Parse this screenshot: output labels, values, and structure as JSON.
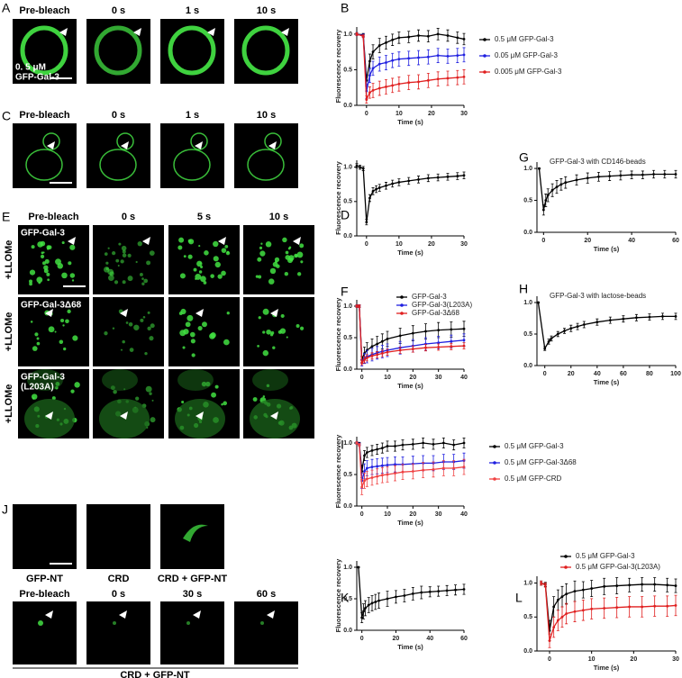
{
  "figure_panels": {
    "A": {
      "label": "A",
      "columns": [
        "Pre-bleach",
        "0 s",
        "1 s",
        "10 s"
      ],
      "overlay": [
        "0. 5 μM",
        "GFP-Gal-3"
      ]
    },
    "C": {
      "label": "C",
      "columns": [
        "Pre-bleach",
        "0 s",
        "1 s",
        "10 s"
      ]
    },
    "E": {
      "label": "E",
      "columns": [
        "Pre-bleach",
        "0 s",
        "5 s",
        "10 s"
      ],
      "rows": [
        {
          "side": "+LLOMe",
          "inset": [
            "GFP-Gal-3"
          ]
        },
        {
          "side": "+LLOMe",
          "inset": [
            "GFP-Gal-3Δ68"
          ]
        },
        {
          "side": "+LLOMe",
          "inset": [
            "GFP-Gal-3",
            "(L203A)"
          ]
        }
      ]
    },
    "J": {
      "label": "J",
      "top_captions": [
        "GFP-NT",
        "CRD",
        "CRD + GFP-NT"
      ],
      "columns": [
        "Pre-bleach",
        "0 s",
        "30 s",
        "60 s"
      ],
      "caption": "CRD + GFP-NT"
    }
  },
  "chart_data": [
    {
      "type": "line",
      "panel": "B",
      "ylabel": "Fluorescence recovery",
      "xlabel": "Time (s)",
      "legend": "right",
      "xlim": [
        -3,
        30
      ],
      "ylim": [
        0,
        1.1
      ],
      "xticks": [
        0,
        10,
        20,
        30
      ],
      "yticks": [
        {
          "value": 0,
          "label": "0.0"
        },
        {
          "value": 0.5,
          "label": "0.5"
        },
        {
          "value": 1,
          "label": "1.0"
        }
      ],
      "x": [
        -3,
        -1,
        0,
        1,
        2,
        4,
        6,
        8,
        10,
        13,
        16,
        19,
        22,
        25,
        28,
        30
      ],
      "series": [
        {
          "name": "0.5 μM GFP-Gal-3",
          "color": "#000000",
          "values": [
            1,
            0.99,
            0.35,
            0.62,
            0.75,
            0.84,
            0.88,
            0.92,
            0.95,
            0.96,
            0.98,
            0.97,
            1.0,
            0.98,
            0.95,
            0.93
          ],
          "errors": [
            0.02,
            0.02,
            0.08,
            0.1,
            0.1,
            0.1,
            0.09,
            0.08,
            0.08,
            0.08,
            0.08,
            0.08,
            0.08,
            0.08,
            0.08,
            0.08
          ]
        },
        {
          "name": "0.05 μM GFP-Gal-3",
          "color": "#1f1fe0",
          "values": [
            1,
            0.98,
            0.2,
            0.42,
            0.52,
            0.58,
            0.6,
            0.63,
            0.65,
            0.66,
            0.67,
            0.68,
            0.7,
            0.69,
            0.7,
            0.71
          ],
          "errors": [
            0.02,
            0.02,
            0.1,
            0.1,
            0.1,
            0.1,
            0.1,
            0.1,
            0.1,
            0.1,
            0.1,
            0.1,
            0.1,
            0.1,
            0.1,
            0.1
          ]
        },
        {
          "name": "0.005 μM GFP-Gal-3",
          "color": "#e01f1f",
          "values": [
            1,
            0.97,
            0.08,
            0.18,
            0.21,
            0.24,
            0.26,
            0.28,
            0.3,
            0.32,
            0.33,
            0.35,
            0.37,
            0.38,
            0.39,
            0.4
          ],
          "errors": [
            0.02,
            0.02,
            0.05,
            0.08,
            0.1,
            0.1,
            0.1,
            0.1,
            0.1,
            0.1,
            0.1,
            0.1,
            0.1,
            0.1,
            0.1,
            0.1
          ]
        }
      ]
    },
    {
      "type": "line",
      "panel": "D",
      "ylabel": "Fluorescence recovery",
      "xlabel": "Time (s)",
      "xlim": [
        -3,
        30
      ],
      "ylim": [
        0,
        1.1
      ],
      "xticks": [
        0,
        10,
        20,
        30
      ],
      "yticks": [
        {
          "value": 0,
          "label": "0.0"
        },
        {
          "value": 0.5,
          "label": "0.5"
        },
        {
          "value": 1,
          "label": "1.0"
        }
      ],
      "x": [
        -3,
        -2,
        -1,
        0,
        1,
        2,
        3,
        4,
        6,
        8,
        10,
        13,
        16,
        19,
        22,
        25,
        28,
        30
      ],
      "series": [
        {
          "color": "#000000",
          "values": [
            1.02,
            1.0,
            0.98,
            0.2,
            0.55,
            0.65,
            0.68,
            0.7,
            0.73,
            0.76,
            0.78,
            0.8,
            0.82,
            0.84,
            0.85,
            0.86,
            0.87,
            0.88
          ],
          "errors": [
            0.03,
            0.03,
            0.03,
            0.04,
            0.05,
            0.05,
            0.05,
            0.05,
            0.05,
            0.05,
            0.05,
            0.05,
            0.05,
            0.05,
            0.05,
            0.05,
            0.05,
            0.05
          ]
        }
      ]
    },
    {
      "type": "line",
      "panel": "G",
      "title": "GFP-Gal-3 with CD146-beads",
      "xlabel": "Time (s)",
      "xlim": [
        -3,
        60
      ],
      "ylim": [
        0,
        1.1
      ],
      "xticks": [
        0,
        20,
        40,
        60
      ],
      "yticks": [
        {
          "value": 0,
          "label": "0.0"
        },
        {
          "value": 0.5,
          "label": "0.5"
        },
        {
          "value": 1,
          "label": "1.0"
        }
      ],
      "x": [
        -2,
        0,
        1,
        2,
        4,
        6,
        8,
        10,
        15,
        20,
        25,
        30,
        35,
        40,
        45,
        50,
        55,
        60
      ],
      "series": [
        {
          "color": "#000000",
          "values": [
            1,
            0.35,
            0.5,
            0.58,
            0.66,
            0.71,
            0.75,
            0.78,
            0.82,
            0.85,
            0.87,
            0.88,
            0.89,
            0.9,
            0.9,
            0.91,
            0.91,
            0.91
          ],
          "errors": [
            0.01,
            0.08,
            0.1,
            0.1,
            0.1,
            0.1,
            0.09,
            0.09,
            0.08,
            0.08,
            0.07,
            0.07,
            0.07,
            0.06,
            0.06,
            0.06,
            0.06,
            0.06
          ]
        }
      ]
    },
    {
      "type": "line",
      "panel": "F",
      "ylabel": "Fluorescence recovery",
      "xlabel": "Time (s)",
      "legend": "inside",
      "xlim": [
        -2,
        40
      ],
      "ylim": [
        0,
        1.1
      ],
      "xticks": [
        0,
        10,
        20,
        30,
        40
      ],
      "yticks": [
        {
          "value": 0,
          "label": "0.0"
        },
        {
          "value": 0.5,
          "label": "0.5"
        },
        {
          "value": 1,
          "label": "1.0"
        }
      ],
      "x": [
        -2,
        -1,
        0,
        1,
        2,
        4,
        6,
        8,
        10,
        15,
        20,
        25,
        30,
        35,
        40
      ],
      "series": [
        {
          "name": "GFP-Gal-3",
          "color": "#000000",
          "values": [
            1,
            1,
            0.15,
            0.25,
            0.3,
            0.36,
            0.4,
            0.44,
            0.48,
            0.53,
            0.57,
            0.6,
            0.62,
            0.63,
            0.64
          ],
          "errors": [
            0.02,
            0.02,
            0.05,
            0.1,
            0.12,
            0.12,
            0.12,
            0.12,
            0.12,
            0.12,
            0.12,
            0.12,
            0.12,
            0.12,
            0.12
          ]
        },
        {
          "name": "GFP-Gal-3(L203A)",
          "color": "#1f1fe0",
          "values": [
            1,
            1,
            0.1,
            0.17,
            0.2,
            0.23,
            0.26,
            0.28,
            0.3,
            0.34,
            0.37,
            0.4,
            0.42,
            0.44,
            0.46
          ],
          "errors": [
            0.02,
            0.02,
            0.05,
            0.08,
            0.1,
            0.1,
            0.1,
            0.1,
            0.1,
            0.1,
            0.1,
            0.1,
            0.1,
            0.1,
            0.1
          ]
        },
        {
          "name": "GFP-Gal-3Δ68",
          "color": "#e01f1f",
          "values": [
            1,
            1,
            0.1,
            0.15,
            0.18,
            0.21,
            0.23,
            0.25,
            0.27,
            0.3,
            0.32,
            0.34,
            0.35,
            0.36,
            0.37
          ],
          "errors": [
            0.02,
            0.02,
            0.03,
            0.05,
            0.05,
            0.05,
            0.05,
            0.05,
            0.05,
            0.05,
            0.05,
            0.05,
            0.05,
            0.05,
            0.05
          ]
        }
      ]
    },
    {
      "type": "line",
      "panel": "H",
      "title": "GFP-Gal-3 with lactose-beads",
      "xlabel": "Time (s)",
      "xlim": [
        -6,
        100
      ],
      "ylim": [
        0,
        1.1
      ],
      "xticks": [
        0,
        20,
        40,
        60,
        80,
        100
      ],
      "yticks": [
        {
          "value": 0,
          "label": "0.0"
        },
        {
          "value": 0.5,
          "label": "0.5"
        },
        {
          "value": 1,
          "label": "1.0"
        }
      ],
      "x": [
        -5,
        0,
        3,
        5,
        10,
        15,
        20,
        25,
        30,
        40,
        50,
        60,
        70,
        80,
        90,
        100
      ],
      "series": [
        {
          "color": "#000000",
          "values": [
            1,
            0.27,
            0.38,
            0.43,
            0.5,
            0.55,
            0.59,
            0.62,
            0.65,
            0.69,
            0.72,
            0.74,
            0.76,
            0.77,
            0.78,
            0.78
          ],
          "errors": [
            0.01,
            0.03,
            0.04,
            0.04,
            0.04,
            0.04,
            0.05,
            0.05,
            0.05,
            0.05,
            0.05,
            0.05,
            0.05,
            0.05,
            0.05,
            0.05
          ]
        }
      ]
    },
    {
      "type": "line",
      "panel": "I",
      "ylabel": "Fluorescence recovery",
      "xlabel": "Time (s)",
      "legend": "right",
      "xlim": [
        -2,
        40
      ],
      "ylim": [
        0,
        1.1
      ],
      "xticks": [
        0,
        10,
        20,
        30,
        40
      ],
      "yticks": [
        {
          "value": 0,
          "label": "0.0"
        },
        {
          "value": 0.5,
          "label": "0.5"
        },
        {
          "value": 1,
          "label": "1.0"
        }
      ],
      "x": [
        -2,
        -1,
        0,
        1,
        2,
        4,
        6,
        8,
        10,
        13,
        16,
        20,
        24,
        28,
        32,
        36,
        40
      ],
      "series": [
        {
          "name": "0.5 μM GFP-Gal-3",
          "color": "#000000",
          "values": [
            1,
            0.99,
            0.55,
            0.8,
            0.85,
            0.88,
            0.9,
            0.92,
            0.95,
            0.95,
            0.97,
            0.98,
            1.0,
            0.98,
            1.0,
            0.97,
            1.0
          ],
          "errors": [
            0.02,
            0.02,
            0.1,
            0.08,
            0.08,
            0.08,
            0.08,
            0.08,
            0.08,
            0.08,
            0.08,
            0.08,
            0.08,
            0.08,
            0.08,
            0.08,
            0.08
          ]
        },
        {
          "name": "0.5 μM GFP-Gal-3Δ68",
          "color": "#1f1fe0",
          "values": [
            1,
            0.98,
            0.4,
            0.55,
            0.6,
            0.62,
            0.63,
            0.64,
            0.65,
            0.66,
            0.66,
            0.67,
            0.68,
            0.68,
            0.7,
            0.7,
            0.72
          ],
          "errors": [
            0.02,
            0.02,
            0.12,
            0.12,
            0.12,
            0.12,
            0.12,
            0.12,
            0.12,
            0.12,
            0.12,
            0.12,
            0.12,
            0.12,
            0.12,
            0.12,
            0.12
          ]
        },
        {
          "name": "0.5 μM GFP-CRD",
          "color": "#f04040",
          "values": [
            1,
            0.97,
            0.3,
            0.4,
            0.43,
            0.45,
            0.47,
            0.49,
            0.5,
            0.52,
            0.54,
            0.55,
            0.57,
            0.58,
            0.6,
            0.6,
            0.62
          ],
          "errors": [
            0.02,
            0.02,
            0.12,
            0.12,
            0.12,
            0.12,
            0.12,
            0.12,
            0.12,
            0.12,
            0.12,
            0.12,
            0.12,
            0.12,
            0.12,
            0.12,
            0.12
          ]
        }
      ]
    },
    {
      "type": "line",
      "panel": "K",
      "ylabel": "Fluorescence recovery",
      "xlabel": "Time (s)",
      "xlim": [
        -3,
        60
      ],
      "ylim": [
        0,
        1.1
      ],
      "xticks": [
        0,
        20,
        40,
        60
      ],
      "yticks": [
        {
          "value": 0,
          "label": "0.0"
        },
        {
          "value": 0.5,
          "label": "0.5"
        },
        {
          "value": 1,
          "label": "1.0"
        }
      ],
      "x": [
        -2,
        0,
        1,
        2,
        4,
        6,
        8,
        10,
        15,
        20,
        25,
        30,
        35,
        40,
        45,
        50,
        55,
        60
      ],
      "series": [
        {
          "color": "#000000",
          "values": [
            1,
            0.2,
            0.3,
            0.35,
            0.4,
            0.43,
            0.45,
            0.47,
            0.5,
            0.53,
            0.55,
            0.58,
            0.6,
            0.61,
            0.62,
            0.63,
            0.64,
            0.65
          ],
          "errors": [
            0.01,
            0.08,
            0.12,
            0.12,
            0.12,
            0.12,
            0.12,
            0.12,
            0.12,
            0.1,
            0.1,
            0.1,
            0.1,
            0.08,
            0.08,
            0.08,
            0.08,
            0.08
          ]
        }
      ]
    },
    {
      "type": "line",
      "panel": "L",
      "xlabel": "Time (s)",
      "legend": "above",
      "xlim": [
        -3,
        30
      ],
      "ylim": [
        0,
        1.1
      ],
      "xticks": [
        0,
        10,
        20,
        30
      ],
      "yticks": [
        {
          "value": 0,
          "label": "0.0"
        },
        {
          "value": 0.5,
          "label": "0.5"
        },
        {
          "value": 1,
          "label": "1.0"
        }
      ],
      "x": [
        -2,
        -1,
        0,
        1,
        2,
        3,
        4,
        6,
        8,
        10,
        13,
        16,
        19,
        22,
        25,
        28,
        30
      ],
      "series": [
        {
          "name": "0.5 μM GFP-Gal-3",
          "color": "#000000",
          "values": [
            1,
            0.98,
            0.3,
            0.65,
            0.75,
            0.8,
            0.84,
            0.88,
            0.9,
            0.92,
            0.95,
            0.96,
            0.97,
            0.98,
            0.98,
            0.97,
            0.96
          ],
          "errors": [
            0.03,
            0.03,
            0.15,
            0.15,
            0.15,
            0.15,
            0.15,
            0.15,
            0.12,
            0.12,
            0.12,
            0.12,
            0.1,
            0.1,
            0.1,
            0.1,
            0.1
          ]
        },
        {
          "name": "0.5 μM GFP-Gal-3(L203A)",
          "color": "#e01f1f",
          "values": [
            1,
            0.97,
            0.15,
            0.35,
            0.45,
            0.5,
            0.55,
            0.58,
            0.6,
            0.62,
            0.63,
            0.64,
            0.65,
            0.65,
            0.66,
            0.66,
            0.67
          ],
          "errors": [
            0.03,
            0.03,
            0.1,
            0.15,
            0.15,
            0.15,
            0.15,
            0.15,
            0.15,
            0.15,
            0.15,
            0.15,
            0.15,
            0.15,
            0.15,
            0.15,
            0.15
          ]
        }
      ]
    }
  ]
}
